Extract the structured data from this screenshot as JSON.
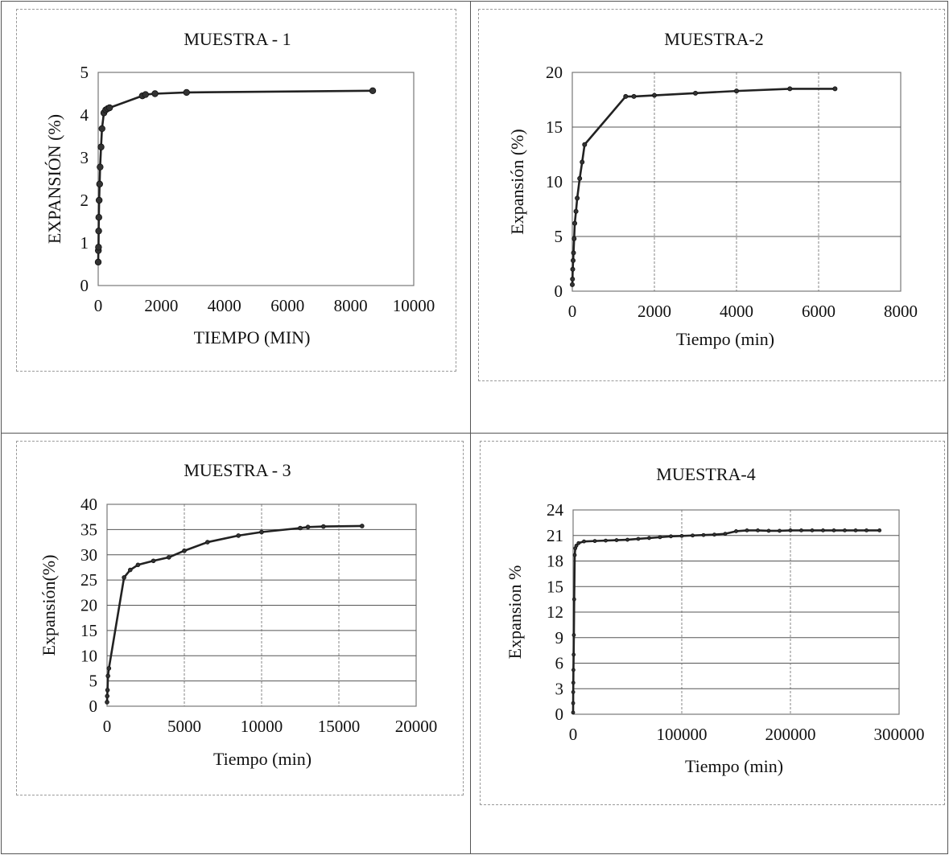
{
  "chart_data": [
    {
      "type": "line",
      "title": "MUESTRA - 1",
      "xlabel": "TIEMPO (MIN)",
      "ylabel": "EXPANSIÓN (%)",
      "xlim": [
        0,
        10000
      ],
      "ylim": [
        0,
        5
      ],
      "xticks": [
        0,
        2000,
        4000,
        6000,
        8000,
        10000
      ],
      "yticks": [
        0,
        1,
        2,
        3,
        4,
        5
      ],
      "grid": "none",
      "series": [
        {
          "x": [
            0,
            5,
            10,
            15,
            20,
            30,
            45,
            60,
            90,
            120,
            180,
            240,
            300,
            360,
            1400,
            1500,
            1800,
            2800,
            8700
          ],
          "y": [
            0.55,
            0.82,
            0.9,
            1.28,
            1.6,
            2.0,
            2.38,
            2.78,
            3.25,
            3.68,
            4.05,
            4.12,
            4.15,
            4.17,
            4.45,
            4.48,
            4.5,
            4.53,
            4.57
          ]
        }
      ]
    },
    {
      "type": "line",
      "title": "MUESTRA-2",
      "xlabel": "Tiempo (min)",
      "ylabel": "Expansión (%)",
      "xlim": [
        0,
        8000
      ],
      "ylim": [
        0,
        20
      ],
      "xticks": [
        0,
        2000,
        4000,
        6000,
        8000
      ],
      "yticks": [
        0,
        5,
        10,
        15,
        20
      ],
      "grid": "both",
      "series": [
        {
          "x": [
            0,
            5,
            10,
            20,
            30,
            45,
            60,
            90,
            120,
            180,
            240,
            300,
            1300,
            1500,
            2000,
            3000,
            4000,
            5300,
            6400
          ],
          "y": [
            0.6,
            1.1,
            2.0,
            2.8,
            3.5,
            4.8,
            6.2,
            7.3,
            8.5,
            10.3,
            11.8,
            13.4,
            17.8,
            17.8,
            17.9,
            18.1,
            18.3,
            18.5,
            18.5
          ]
        }
      ]
    },
    {
      "type": "line",
      "title": "MUESTRA - 3",
      "xlabel": "Tiempo (min)",
      "ylabel": "Expansión(%)",
      "xlim": [
        0,
        20000
      ],
      "ylim": [
        0,
        40
      ],
      "xticks": [
        0,
        5000,
        10000,
        15000,
        20000
      ],
      "yticks": [
        0,
        5,
        10,
        15,
        20,
        25,
        30,
        35,
        40
      ],
      "grid": "both",
      "series": [
        {
          "x": [
            0,
            10,
            30,
            60,
            120,
            1100,
            1500,
            2000,
            3000,
            4000,
            5000,
            6500,
            8500,
            10000,
            12500,
            13000,
            14000,
            16500
          ],
          "y": [
            0.8,
            2.0,
            3.2,
            6.0,
            7.5,
            25.5,
            27.0,
            28.0,
            28.8,
            29.5,
            30.8,
            32.5,
            33.8,
            34.5,
            35.3,
            35.5,
            35.6,
            35.7
          ]
        }
      ]
    },
    {
      "type": "line",
      "title": "MUESTRA-4",
      "xlabel": "Tiempo (min)",
      "ylabel": "Expansion %",
      "xlim": [
        0,
        300000
      ],
      "ylim": [
        0,
        24
      ],
      "xticks": [
        0,
        100000,
        200000,
        300000
      ],
      "yticks": [
        0,
        3,
        6,
        9,
        12,
        15,
        18,
        21,
        24
      ],
      "grid": "both",
      "series": [
        {
          "x": [
            0,
            50,
            100,
            200,
            300,
            500,
            700,
            1000,
            1500,
            2000,
            3000,
            5000,
            10000,
            20000,
            30000,
            40000,
            50000,
            60000,
            70000,
            80000,
            90000,
            100000,
            110000,
            120000,
            130000,
            140000,
            150000,
            160000,
            170000,
            180000,
            190000,
            200000,
            210000,
            220000,
            230000,
            240000,
            250000,
            260000,
            270000,
            282000
          ],
          "y": [
            0.2,
            1.3,
            2.6,
            3.7,
            5.2,
            7.0,
            9.3,
            13.5,
            18.7,
            19.5,
            19.8,
            20.1,
            20.3,
            20.35,
            20.4,
            20.45,
            20.5,
            20.6,
            20.7,
            20.8,
            20.9,
            20.95,
            21.0,
            21.05,
            21.1,
            21.2,
            21.5,
            21.6,
            21.6,
            21.55,
            21.55,
            21.6,
            21.6,
            21.6,
            21.6,
            21.6,
            21.6,
            21.6,
            21.6,
            21.6
          ]
        }
      ]
    }
  ]
}
